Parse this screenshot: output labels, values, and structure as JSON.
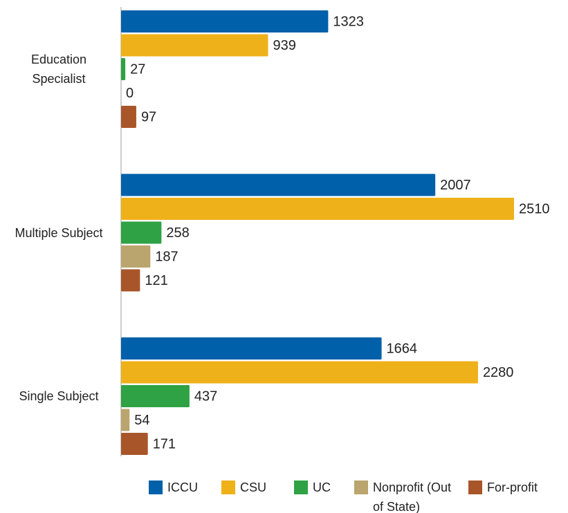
{
  "chart_data": {
    "type": "barh",
    "categories": [
      "Education Specialist",
      "Multiple Subject",
      "Single Subject"
    ],
    "series": [
      {
        "name": "ICCU",
        "color": "#0060a9",
        "values": [
          1323,
          2007,
          1664
        ]
      },
      {
        "name": "CSU",
        "color": "#efb11a",
        "values": [
          939,
          2510,
          2280
        ]
      },
      {
        "name": "UC",
        "color": "#2ea244",
        "values": [
          27,
          258,
          437
        ]
      },
      {
        "name": "Nonprofit (Out of State)",
        "color": "#b9a56d",
        "values": [
          0,
          187,
          54
        ]
      },
      {
        "name": "For-profit",
        "color": "#a9552a",
        "values": [
          97,
          121,
          171
        ]
      }
    ],
    "legend": "bottom"
  }
}
